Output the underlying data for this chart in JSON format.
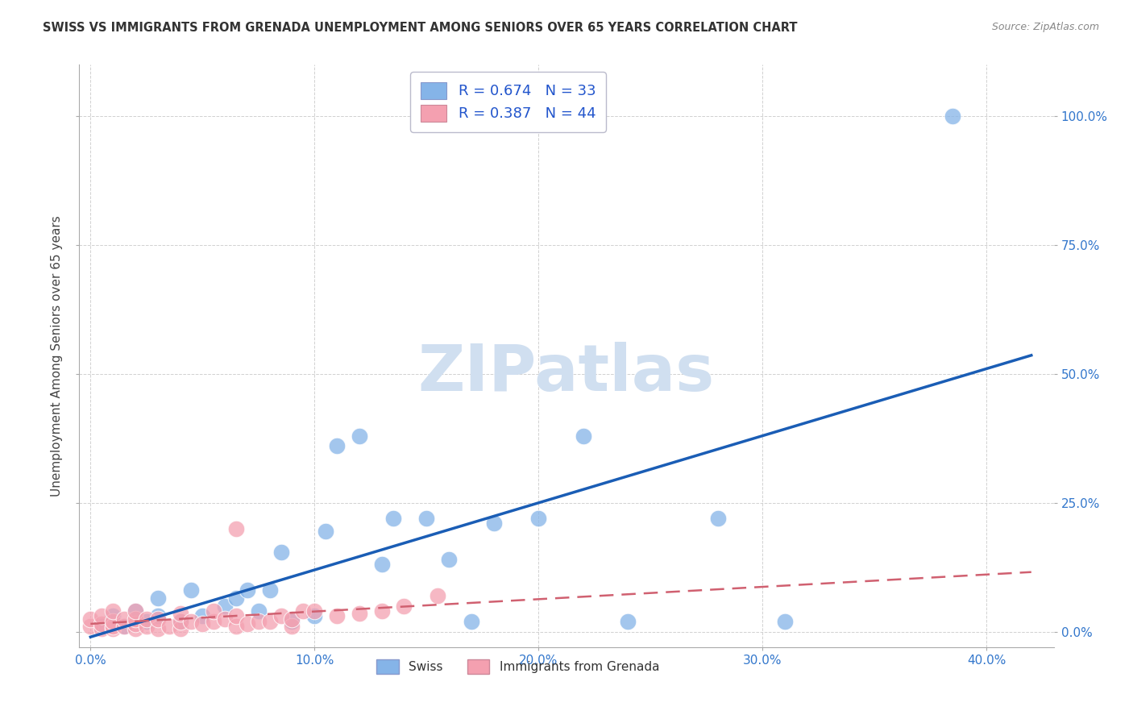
{
  "title": "SWISS VS IMMIGRANTS FROM GRENADA UNEMPLOYMENT AMONG SENIORS OVER 65 YEARS CORRELATION CHART",
  "source": "Source: ZipAtlas.com",
  "ylabel": "Unemployment Among Seniors over 65 years",
  "xlabel_ticks": [
    "0.0%",
    "10.0%",
    "20.0%",
    "30.0%",
    "40.0%"
  ],
  "xlabel_vals": [
    0.0,
    0.1,
    0.2,
    0.3,
    0.4
  ],
  "ylabel_right_ticks": [
    "0.0%",
    "25.0%",
    "50.0%",
    "75.0%",
    "100.0%"
  ],
  "ylabel_right_vals": [
    0.0,
    0.25,
    0.5,
    0.75,
    1.0
  ],
  "xlim": [
    -0.005,
    0.43
  ],
  "ylim": [
    -0.03,
    1.1
  ],
  "swiss_R": 0.674,
  "swiss_N": 33,
  "grenada_R": 0.387,
  "grenada_N": 44,
  "swiss_color": "#85b4e8",
  "grenada_color": "#f4a0b0",
  "swiss_line_color": "#1a5db5",
  "grenada_line_color": "#d06070",
  "watermark": "ZIPatlas",
  "watermark_color": "#d0dff0",
  "swiss_scatter_x": [
    0.005,
    0.01,
    0.015,
    0.02,
    0.025,
    0.03,
    0.03,
    0.04,
    0.045,
    0.05,
    0.06,
    0.065,
    0.07,
    0.075,
    0.08,
    0.085,
    0.09,
    0.1,
    0.105,
    0.11,
    0.12,
    0.13,
    0.135,
    0.15,
    0.16,
    0.17,
    0.18,
    0.2,
    0.22,
    0.24,
    0.28,
    0.31,
    0.385
  ],
  "swiss_scatter_y": [
    0.01,
    0.03,
    0.01,
    0.04,
    0.02,
    0.03,
    0.065,
    0.02,
    0.08,
    0.03,
    0.05,
    0.065,
    0.08,
    0.04,
    0.08,
    0.155,
    0.02,
    0.03,
    0.195,
    0.36,
    0.38,
    0.13,
    0.22,
    0.22,
    0.14,
    0.02,
    0.21,
    0.22,
    0.38,
    0.02,
    0.22,
    0.02,
    1.0
  ],
  "grenada_scatter_x": [
    0.0,
    0.0,
    0.005,
    0.005,
    0.005,
    0.01,
    0.01,
    0.01,
    0.01,
    0.015,
    0.015,
    0.02,
    0.02,
    0.02,
    0.02,
    0.025,
    0.025,
    0.03,
    0.03,
    0.035,
    0.04,
    0.04,
    0.04,
    0.045,
    0.05,
    0.055,
    0.055,
    0.06,
    0.065,
    0.065,
    0.07,
    0.075,
    0.08,
    0.085,
    0.09,
    0.09,
    0.095,
    0.1,
    0.11,
    0.12,
    0.13,
    0.14,
    0.155,
    0.065
  ],
  "grenada_scatter_y": [
    0.01,
    0.025,
    0.005,
    0.015,
    0.03,
    0.005,
    0.01,
    0.02,
    0.04,
    0.01,
    0.025,
    0.005,
    0.015,
    0.025,
    0.04,
    0.01,
    0.025,
    0.005,
    0.025,
    0.01,
    0.005,
    0.02,
    0.035,
    0.02,
    0.015,
    0.02,
    0.04,
    0.025,
    0.01,
    0.03,
    0.015,
    0.02,
    0.02,
    0.03,
    0.01,
    0.025,
    0.04,
    0.04,
    0.03,
    0.035,
    0.04,
    0.05,
    0.07,
    0.2
  ],
  "background_color": "#ffffff",
  "grid_color": "#cccccc"
}
